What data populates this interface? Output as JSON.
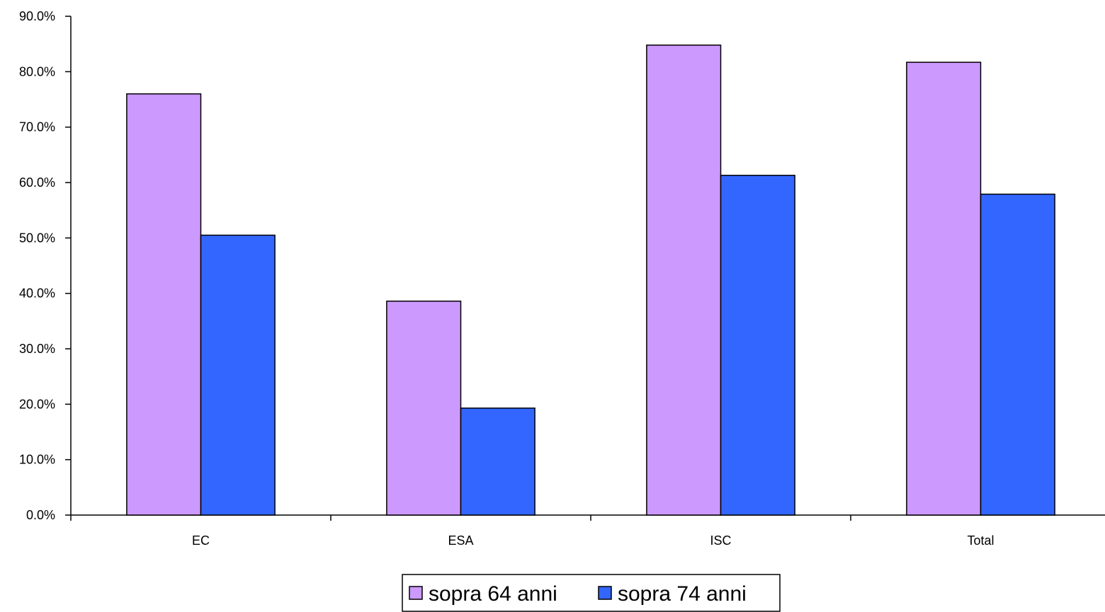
{
  "chart_data": {
    "type": "bar",
    "title": "",
    "xlabel": "",
    "ylabel": "",
    "categories": [
      "EC",
      "ESA",
      "ISC",
      "Total"
    ],
    "series": [
      {
        "name": "sopra 64 anni",
        "values": [
          76.0,
          38.6,
          84.8,
          81.7
        ],
        "color": "#cc99ff"
      },
      {
        "name": "sopra 74 anni",
        "values": [
          50.5,
          19.3,
          61.3,
          57.9
        ],
        "color": "#3366ff"
      }
    ],
    "ylim": [
      0,
      90
    ],
    "yticks": [
      0,
      10,
      20,
      30,
      40,
      50,
      60,
      70,
      80,
      90
    ],
    "ytick_labels": [
      "0.0%",
      "10.0%",
      "20.0%",
      "30.0%",
      "40.0%",
      "50.0%",
      "60.0%",
      "70.0%",
      "80.0%",
      "90.0%"
    ],
    "grid": false,
    "legend_position": "bottom-center",
    "bar_outline_color": "#000000"
  }
}
